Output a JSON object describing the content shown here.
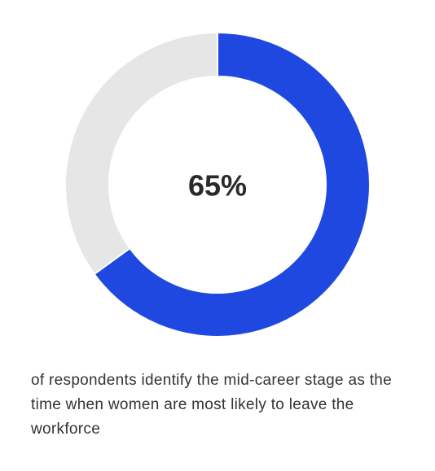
{
  "chart_data": {
    "type": "donut",
    "values": [
      65,
      35
    ],
    "colors": [
      "#1f48e0",
      "#e6e6e6"
    ],
    "center_label": "65%",
    "caption": "of respondents identify the mid-career stage as the time when women are most likely to leave the workforce"
  }
}
